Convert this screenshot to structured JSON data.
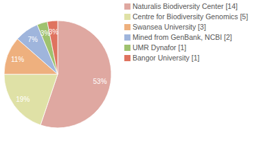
{
  "chart_data": {
    "type": "pie",
    "categories": [
      "Naturalis Biodiversity Center [14]",
      "Centre for Biodiversity Genomics [5]",
      "Swansea University [3]",
      "Mined from GenBank, NCBI [2]",
      "UMR Dynafor [1]",
      "Bangor University [1]"
    ],
    "values": [
      53,
      19,
      11,
      7,
      3,
      3
    ],
    "value_labels": [
      "53%",
      "19%",
      "11%",
      "7%",
      "3%",
      "3%"
    ],
    "colors": [
      "#dfa8a1",
      "#dfe1a6",
      "#eeb07e",
      "#9fb5dc",
      "#9fc26f",
      "#df735f"
    ],
    "data_labels": true,
    "legend": "top-right"
  }
}
